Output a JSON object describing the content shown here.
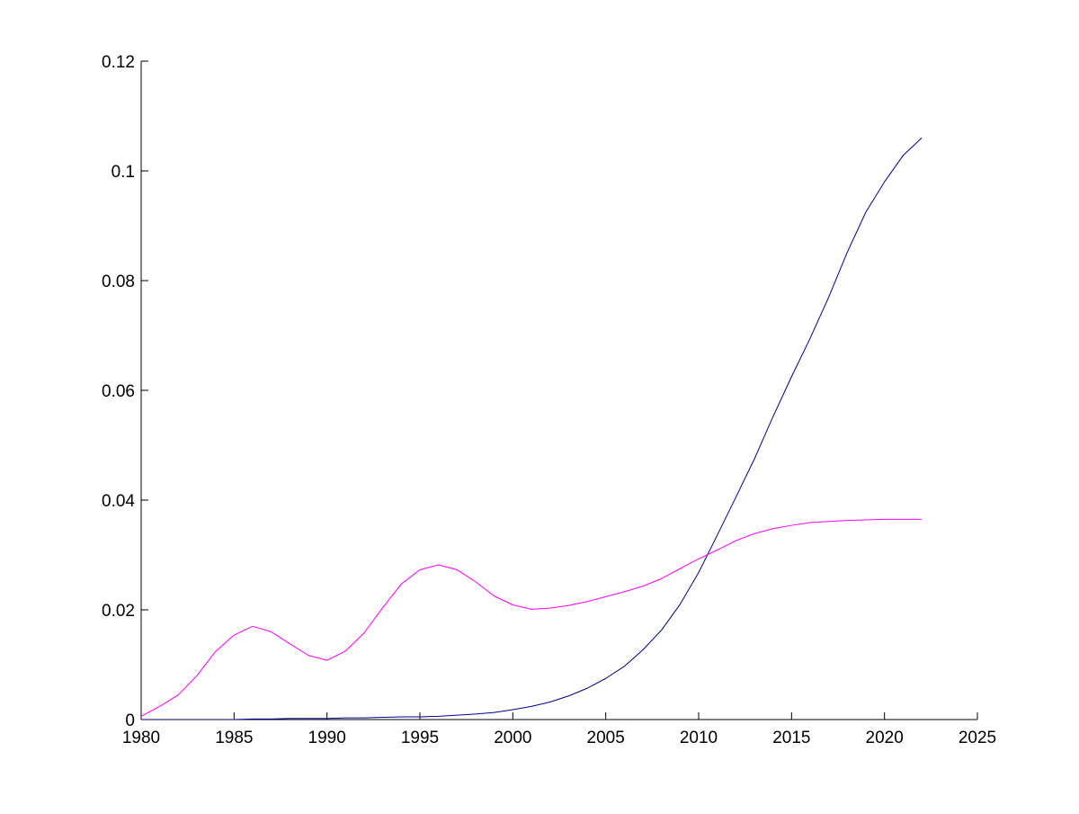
{
  "chart_data": {
    "type": "line",
    "title": "",
    "xlabel": "",
    "ylabel": "",
    "xlim": [
      1980,
      2025
    ],
    "ylim": [
      0,
      0.12
    ],
    "x_ticks": [
      1980,
      1985,
      1990,
      1995,
      2000,
      2005,
      2010,
      2015,
      2020,
      2025
    ],
    "y_ticks": [
      0,
      0.02,
      0.04,
      0.06,
      0.08,
      0.1,
      0.12
    ],
    "x_tick_labels": [
      "1980",
      "1985",
      "1990",
      "1995",
      "2000",
      "2005",
      "2010",
      "2015",
      "2020",
      "2025"
    ],
    "y_tick_labels": [
      "0",
      "0.02",
      "0.04",
      "0.06",
      "0.08",
      "0.1",
      "0.12"
    ],
    "grid": false,
    "legend": false,
    "series": [
      {
        "color": "#00008b",
        "x": [
          1980,
          1981,
          1982,
          1983,
          1984,
          1985,
          1986,
          1987,
          1988,
          1989,
          1990,
          1991,
          1992,
          1993,
          1994,
          1995,
          1996,
          1997,
          1998,
          1999,
          2000,
          2001,
          2002,
          2003,
          2004,
          2005,
          2006,
          2007,
          2008,
          2009,
          2010,
          2011,
          2012,
          2013,
          2014,
          2015,
          2016,
          2017,
          2018,
          2019,
          2020,
          2021,
          2022
        ],
        "y": [
          0.0,
          0.0,
          0.0,
          0.0,
          0.0,
          0.0,
          0.0001,
          0.0001,
          0.0002,
          0.0002,
          0.0002,
          0.0003,
          0.0003,
          0.0004,
          0.0005,
          0.0005,
          0.0006,
          0.0008,
          0.001,
          0.0013,
          0.0018,
          0.0024,
          0.0032,
          0.0043,
          0.0057,
          0.0075,
          0.0097,
          0.0127,
          0.0163,
          0.021,
          0.0268,
          0.0336,
          0.0405,
          0.0475,
          0.0552,
          0.0625,
          0.0695,
          0.077,
          0.0852,
          0.0925,
          0.098,
          0.1028,
          0.106
        ]
      },
      {
        "color": "#ff00ff",
        "x": [
          1980,
          1981,
          1982,
          1983,
          1984,
          1985,
          1986,
          1987,
          1988,
          1989,
          1990,
          1991,
          1992,
          1993,
          1994,
          1995,
          1996,
          1997,
          1998,
          1999,
          2000,
          2001,
          2002,
          2003,
          2004,
          2005,
          2006,
          2007,
          2008,
          2009,
          2010,
          2011,
          2012,
          2013,
          2014,
          2015,
          2016,
          2017,
          2018,
          2019,
          2020,
          2021,
          2022
        ],
        "y": [
          0.0006,
          0.0024,
          0.0045,
          0.008,
          0.0124,
          0.0154,
          0.017,
          0.016,
          0.0138,
          0.0117,
          0.0108,
          0.0125,
          0.0158,
          0.0204,
          0.0247,
          0.0273,
          0.0282,
          0.0273,
          0.0251,
          0.0225,
          0.0209,
          0.0201,
          0.0203,
          0.0208,
          0.0215,
          0.0224,
          0.0233,
          0.0243,
          0.0257,
          0.0275,
          0.0293,
          0.0309,
          0.0326,
          0.0339,
          0.0348,
          0.0354,
          0.0359,
          0.0361,
          0.0363,
          0.0364,
          0.0365,
          0.0365,
          0.0365
        ]
      }
    ]
  }
}
